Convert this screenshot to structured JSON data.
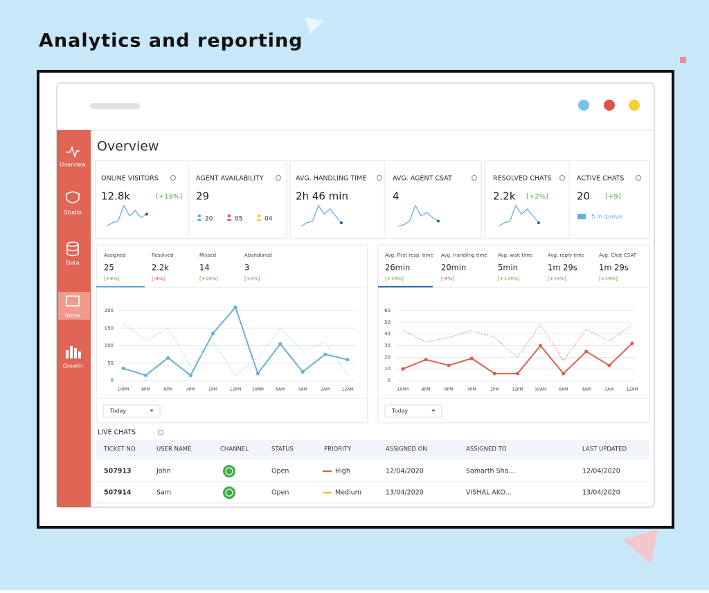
{
  "heading": "Analytics and reporting",
  "sidebar": [
    "Overview",
    "Studio",
    "Data",
    "Inbox",
    "Growth"
  ],
  "title": "Overview",
  "kpis": [
    {
      "label": "ONLINE VISITORS",
      "value": "12.8k",
      "change": "[+19%]",
      "spark": [
        1,
        2,
        2.5,
        7,
        4,
        5.5,
        3.5,
        4.5
      ]
    },
    {
      "label": "AGENT AVAILABILITY",
      "value": "29",
      "agents": [
        {
          "count": "20",
          "color": "#5ea9dd"
        },
        {
          "count": "05",
          "color": "#e0524a"
        },
        {
          "count": "04",
          "color": "#f2c230"
        }
      ]
    },
    {
      "label": "AVG. HANDLING TIME",
      "value": "2h 46 min",
      "spark": [
        1,
        2,
        2.5,
        7,
        4.5,
        6,
        4,
        2
      ]
    },
    {
      "label": "AVG. AGENT CSAT",
      "value": "4",
      "spark": [
        1,
        1.5,
        2.5,
        7,
        4,
        5,
        3.5,
        2.5
      ]
    },
    {
      "label": "RESOLVED CHATS",
      "value": "2.2k",
      "change": "[+2%]",
      "spark": [
        1,
        2,
        2.5,
        7,
        4.5,
        6,
        4,
        2
      ]
    },
    {
      "label": "ACTIVE CHATS",
      "value": "20",
      "change": "[+9]",
      "queue": "5 in queue"
    }
  ],
  "chart_data": [
    {
      "type": "line",
      "tabs": [
        {
          "label": "Assigned",
          "value": "25",
          "change": "[+9%]",
          "color": "#5aa84a"
        },
        {
          "label": "Resolved",
          "value": "2.2k",
          "change": "[-9%]",
          "color": "#e0524a"
        },
        {
          "label": "Missed",
          "value": "14",
          "change": "[+19%]",
          "color": "#5aa84a"
        },
        {
          "label": "Abandoned",
          "value": "3",
          "change": "[+2%]",
          "color": "#5aa84a"
        }
      ],
      "active_color": "#6aaed6",
      "categories": [
        "10PM",
        "8PM",
        "6PM",
        "4PM",
        "2PM",
        "12PM",
        "10AM",
        "6AM",
        "4AM",
        "2AM",
        "12AM"
      ],
      "ylim": [
        0,
        200
      ],
      "yticks": [
        0,
        50,
        100,
        150,
        200
      ],
      "grid": true,
      "series": [
        {
          "color": "#6aaed6",
          "values": [
            35,
            15,
            65,
            15,
            135,
            210,
            20,
            105,
            25,
            75,
            60
          ],
          "markers": true
        },
        {
          "color": "#a8d8cc",
          "values": [
            165,
            115,
            150,
            40,
            110,
            15,
            65,
            150,
            85,
            110,
            15
          ],
          "dashed": true
        }
      ],
      "dropdown": "Today"
    },
    {
      "type": "line",
      "tabs": [
        {
          "label": "Avg. First resp. time",
          "value": "26min",
          "change": "[+19%]",
          "color": "#5aa84a"
        },
        {
          "label": "Avg. Handling time",
          "value": "20min",
          "change": "[-9%]",
          "color": "#e0524a"
        },
        {
          "label": "Avg. wait time",
          "value": "5min",
          "change": "[+129%]",
          "color": "#5aa84a"
        },
        {
          "label": "Avg. reply time",
          "value": "1m 29s",
          "change": "[+19%]",
          "color": "#5aa84a"
        },
        {
          "label": "Avg. Chat CSAT",
          "value": "1m 29s",
          "change": "[+19%]",
          "color": "#5aa84a"
        }
      ],
      "active_color": "#3a70b0",
      "categories": [
        "10PM",
        "8PM",
        "6PM",
        "4PM",
        "2PM",
        "12PM",
        "10AM",
        "6AM",
        "4AM",
        "2AM",
        "12AM"
      ],
      "ylim": [
        0,
        60
      ],
      "yticks": [
        0,
        10,
        20,
        30,
        40,
        50,
        60
      ],
      "grid": true,
      "series": [
        {
          "color": "#d9614f",
          "values": [
            10,
            18,
            13,
            19,
            6,
            6,
            30,
            6,
            25,
            13,
            32
          ],
          "markers": true
        },
        {
          "color": "#e8877a",
          "values": [
            43,
            33,
            37,
            43,
            37,
            20,
            48,
            17,
            44,
            34,
            48
          ],
          "dashed": true
        }
      ],
      "dropdown": "Today"
    }
  ],
  "live_chats": {
    "title": "LIVE CHATS",
    "columns": [
      "TICKET NO",
      "USER NAME",
      "CHANNEL",
      "STATUS",
      "PRIORITY",
      "ASSIGNED ON",
      "ASSIGNED TO",
      "LAST UPDATED"
    ],
    "rows": [
      {
        "ticket": "507913",
        "user": "John",
        "status": "Open",
        "priority": "High",
        "priority_color": "#d9614f",
        "assigned_on": "12/04/2020",
        "assigned_to": "Samarth Sha...",
        "last_updated": "12/04/2020"
      },
      {
        "ticket": "507914",
        "user": "Sam",
        "status": "Open",
        "priority": "Medium",
        "priority_color": "#f2c230",
        "assigned_on": "13/04/2020",
        "assigned_to": "VISHAL AKO...",
        "last_updated": "13/04/2020"
      }
    ]
  }
}
